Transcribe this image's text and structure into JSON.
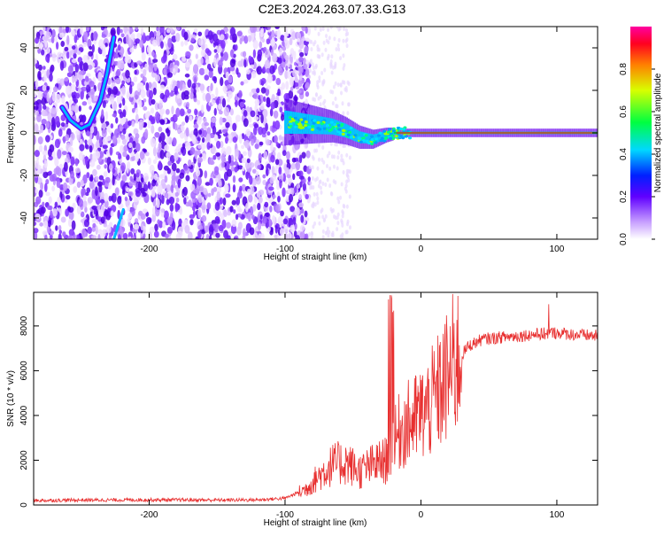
{
  "title": "C2E3.2024.263.07.33.G13",
  "colors": {
    "snr_line": "#e83030",
    "phase_line": "#00c8c8",
    "background": "#ffffff",
    "axis": "#000000"
  },
  "chart_data": [
    {
      "type": "heatmap",
      "xlabel": "Height of straight line (km)",
      "ylabel": "Frequency (Hz)",
      "xlim": [
        -285,
        130
      ],
      "ylim": [
        -50,
        50
      ],
      "xticks": [
        -200,
        -100,
        0,
        100
      ],
      "yticks": [
        -40,
        -20,
        0,
        20,
        40
      ],
      "xtick_labels": [
        "-200",
        "-100",
        "0",
        "100"
      ],
      "ytick_labels": [
        "-40",
        "-20",
        "0",
        "20",
        "40"
      ],
      "grid": false,
      "noise_region_x": [
        -285,
        -82
      ],
      "signal_track": [
        {
          "x": -98,
          "y": 5
        },
        {
          "x": -80,
          "y": 4
        },
        {
          "x": -65,
          "y": 3
        },
        {
          "x": -55,
          "y": 1
        },
        {
          "x": -45,
          "y": -2
        },
        {
          "x": -35,
          "y": -3
        },
        {
          "x": -25,
          "y": -1
        },
        {
          "x": -15,
          "y": 0
        },
        {
          "x": 0,
          "y": 0
        },
        {
          "x": 50,
          "y": 0
        },
        {
          "x": 130,
          "y": 0
        }
      ],
      "secondary_track": [
        {
          "x": -264,
          "y": 12
        },
        {
          "x": -258,
          "y": 6
        },
        {
          "x": -250,
          "y": 2
        },
        {
          "x": -244,
          "y": 4
        },
        {
          "x": -236,
          "y": 15
        },
        {
          "x": -231,
          "y": 28
        },
        {
          "x": -226,
          "y": 45
        }
      ],
      "colorbar": {
        "label": "Normalized spectral amplitude",
        "range": [
          0,
          1
        ],
        "ticks": [
          0.0,
          0.2,
          0.4,
          0.6,
          0.8
        ],
        "tick_labels": [
          "0.0",
          "0.2",
          "0.4",
          "0.6",
          "0.8"
        ]
      }
    },
    {
      "type": "line",
      "xlabel": "Height of straight line (km)",
      "ylabel": "SNR (10 * v/v)",
      "xlim": [
        -285,
        130
      ],
      "ylim": [
        0,
        9500
      ],
      "xticks": [
        -200,
        -100,
        0,
        100
      ],
      "yticks": [
        0,
        2000,
        4000,
        6000,
        8000
      ],
      "xtick_labels": [
        "-200",
        "-100",
        "0",
        "100"
      ],
      "ytick_labels": [
        "0",
        "2000",
        "4000",
        "6000",
        "8000"
      ],
      "grid": false,
      "series": [
        {
          "x": [
            -285,
            -250,
            -200,
            -150,
            -120,
            -100,
            -85,
            -75,
            -65,
            -55,
            -45,
            -35,
            -25,
            -20,
            -15,
            -5,
            5,
            15,
            25,
            35,
            45,
            60,
            80,
            100,
            115,
            130
          ],
          "y": [
            200,
            220,
            230,
            220,
            230,
            300,
            700,
            1300,
            1800,
            1900,
            1500,
            1800,
            2000,
            2700,
            3400,
            3800,
            4300,
            5200,
            6300,
            7100,
            7400,
            7500,
            7600,
            7700,
            7600,
            7550
          ]
        }
      ]
    }
  ]
}
